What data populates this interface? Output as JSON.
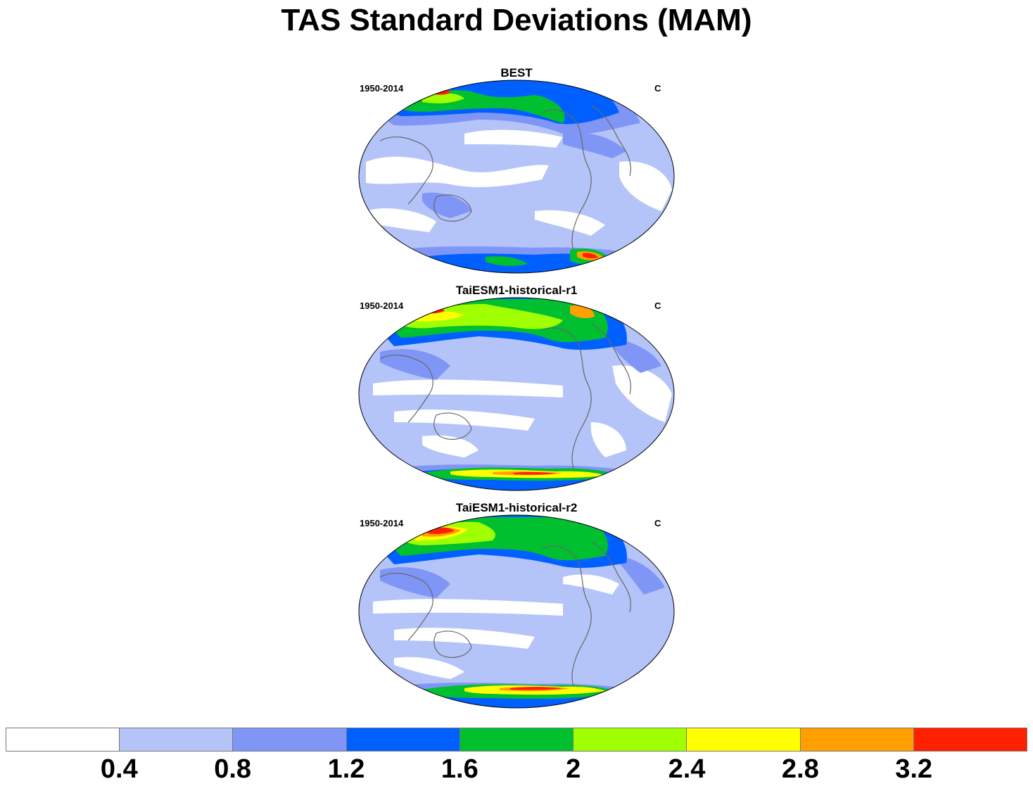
{
  "title": "TAS Standard Deviations (MAM)",
  "panels": [
    {
      "title": "BEST",
      "left_label": "1950-2014",
      "right_label": "C"
    },
    {
      "title": "TaiESM1-historical-r1",
      "left_label": "1950-2014",
      "right_label": "C"
    },
    {
      "title": "TaiESM1-historical-r2",
      "left_label": "1950-2014",
      "right_label": "C"
    }
  ],
  "colorbar": {
    "colors": [
      "#ffffff",
      "#b4c4f8",
      "#8096f6",
      "#0060ff",
      "#00c030",
      "#a0ff00",
      "#ffff00",
      "#ffa000",
      "#ff2000"
    ],
    "labels": [
      "0.4",
      "0.8",
      "1.2",
      "1.6",
      "2",
      "2.4",
      "2.8",
      "3.2"
    ]
  },
  "projection": "Robinson, Pacific-centered"
}
